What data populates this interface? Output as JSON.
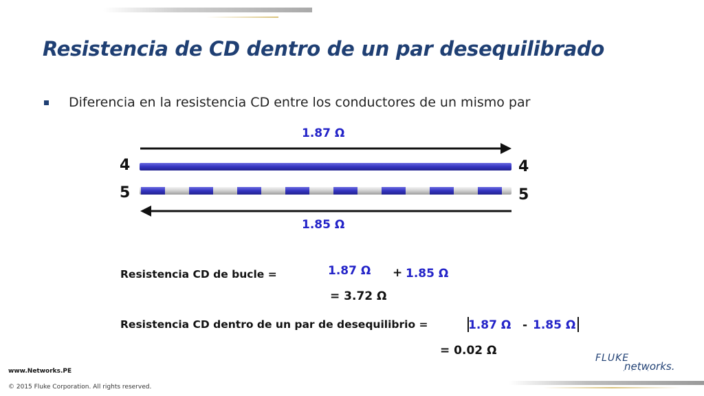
{
  "slide": {
    "title": "Resistencia de CD dentro de un par desequilibrado",
    "bullet": "Diferencia en la resistencia CD entre los conductores de un mismo par"
  },
  "diagram": {
    "top_value": "1.87 Ω",
    "bottom_value": "1.85 Ω",
    "pair_labels": {
      "left_top": "4",
      "right_top": "4",
      "left_bottom": "5",
      "right_bottom": "5"
    },
    "colors": {
      "wire_blue": "#3b3bc4",
      "wire_stripe_white": "#e8e8e8",
      "value_blue": "#2323c8",
      "arrow": "#111111"
    }
  },
  "equations": {
    "loop": {
      "label": "Resistencia CD de bucle =",
      "term1": "1.87 Ω",
      "operator": "+",
      "term2": "1.85 Ω",
      "result": "= 3.72 Ω"
    },
    "unbalance": {
      "label": "Resistencia CD dentro de un par de desequilibrio =",
      "term1": "1.87 Ω",
      "operator": "-",
      "term2": "1.85 Ω",
      "result": "= 0.02 Ω"
    }
  },
  "footer": {
    "url": "www.Networks.PE",
    "copyright": "© 2015 Fluke Corporation. All rights reserved."
  },
  "logo": {
    "line1": "FLUKE",
    "line2": "networks.",
    "dots": "· · · ·"
  }
}
